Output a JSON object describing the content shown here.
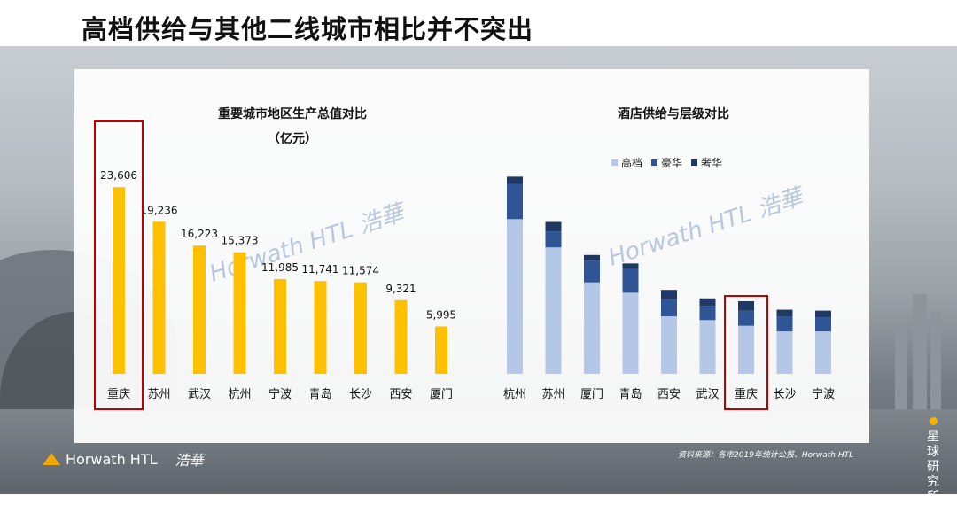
{
  "slide_title": "高档供给与其他二线城市相比并不突出",
  "colors": {
    "gdp_bar": "#FFC000",
    "highlight_box": "#C00000",
    "upscale": "#B4C7E7",
    "luxury": "#2F5597",
    "deluxe": "#1F3864"
  },
  "watermark_text": "Horwath HTL 浩華",
  "source_note": "资料来源：各市2019年统计公报、Horwath HTL",
  "brand": {
    "name": "Horwath HTL",
    "name_cn": "浩華"
  },
  "corner_badge": "星球研究所",
  "chart_data": [
    {
      "type": "bar",
      "title": "重要城市地区生产总值对比",
      "subtitle": "（亿元）",
      "categories": [
        "重庆",
        "苏州",
        "武汉",
        "杭州",
        "宁波",
        "青岛",
        "长沙",
        "西安",
        "厦门"
      ],
      "values": [
        23606,
        19236,
        16223,
        15373,
        11985,
        11741,
        11574,
        9321,
        5995
      ],
      "value_labels": [
        "23,606",
        "19,236",
        "16,223",
        "15,373",
        "11,985",
        "11,741",
        "11,574",
        "9,321",
        "5,995"
      ],
      "highlight": "重庆",
      "ylim": [
        0,
        28000
      ]
    },
    {
      "type": "bar",
      "stacked": true,
      "title": "酒店供给与层级对比",
      "categories": [
        "杭州",
        "苏州",
        "厦门",
        "青岛",
        "西安",
        "武汉",
        "重庆",
        "长沙",
        "宁波"
      ],
      "series": [
        {
          "name": "高档",
          "values": [
            164,
            134,
            97,
            86,
            61,
            57,
            51,
            45,
            45
          ]
        },
        {
          "name": "豪华",
          "values": [
            37,
            17,
            23,
            25,
            18,
            15,
            16,
            16,
            15
          ]
        },
        {
          "name": "奢华",
          "values": [
            8,
            10,
            6,
            6,
            10,
            8,
            10,
            7,
            7
          ]
        }
      ],
      "highlight": "重庆",
      "ylim": [
        0,
        230
      ]
    }
  ]
}
